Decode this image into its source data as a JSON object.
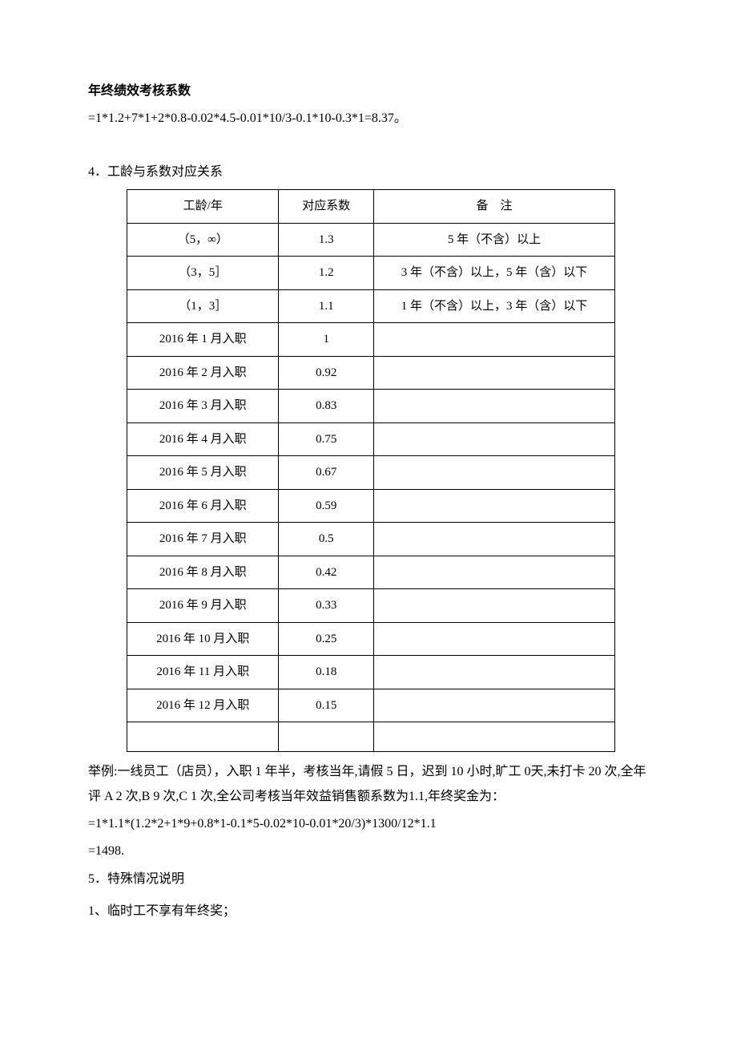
{
  "title": "年终绩效考核系数",
  "formula1": "=1*1.2+7*1+2*0.8-0.02*4.5-0.01*10/3-0.1*10-0.3*1=8.37。",
  "section4_heading": "4．工龄与系数对应关系",
  "table": {
    "headers": [
      "工龄/年",
      "对应系数",
      "备　注"
    ],
    "rows": [
      [
        "（5，∞）",
        "1.3",
        "5 年（不含）以上"
      ],
      [
        "（3，5］",
        "1.2",
        "3 年（不含）以上，5 年（含）以下"
      ],
      [
        "（1，3］",
        "1.1",
        "1 年（不含）以上，3 年（含）以下"
      ],
      [
        "2016 年 1 月入职",
        "1",
        ""
      ],
      [
        "2016 年 2 月入职",
        "0.92",
        ""
      ],
      [
        "2016 年 3 月入职",
        "0.83",
        ""
      ],
      [
        "2016 年 4 月入职",
        "0.75",
        ""
      ],
      [
        "2016 年 5 月入职",
        "0.67",
        ""
      ],
      [
        "2016 年 6 月入职",
        "0.59",
        ""
      ],
      [
        "2016 年 7 月入职",
        "0.5",
        ""
      ],
      [
        "2016 年 8 月入职",
        "0.42",
        ""
      ],
      [
        "2016 年 9 月入职",
        "0.33",
        ""
      ],
      [
        "2016 年 10 月入职",
        "0.25",
        ""
      ],
      [
        "2016 年 11 月入职",
        "0.18",
        ""
      ],
      [
        "2016 年 12 月入职",
        "0.15",
        ""
      ],
      [
        "",
        "",
        ""
      ]
    ]
  },
  "example1": "举例:一线员工（店员），入职 1 年半，考核当年,请假 5 日，迟到 10 小时,旷工 0天,未打卡 20 次,全年评 A 2 次,B 9 次,C 1 次,全公司考核当年效益销售额系数为1.1,年终奖金为：",
  "example2": "=1*1.1*(1.2*2+1*9+0.8*1-0.1*5-0.02*10-0.01*20/3)*1300/12*1.1",
  "example3": "=1498.",
  "section5_heading": "5．特殊情况说明",
  "item1": "1、临时工不享有年终奖；"
}
